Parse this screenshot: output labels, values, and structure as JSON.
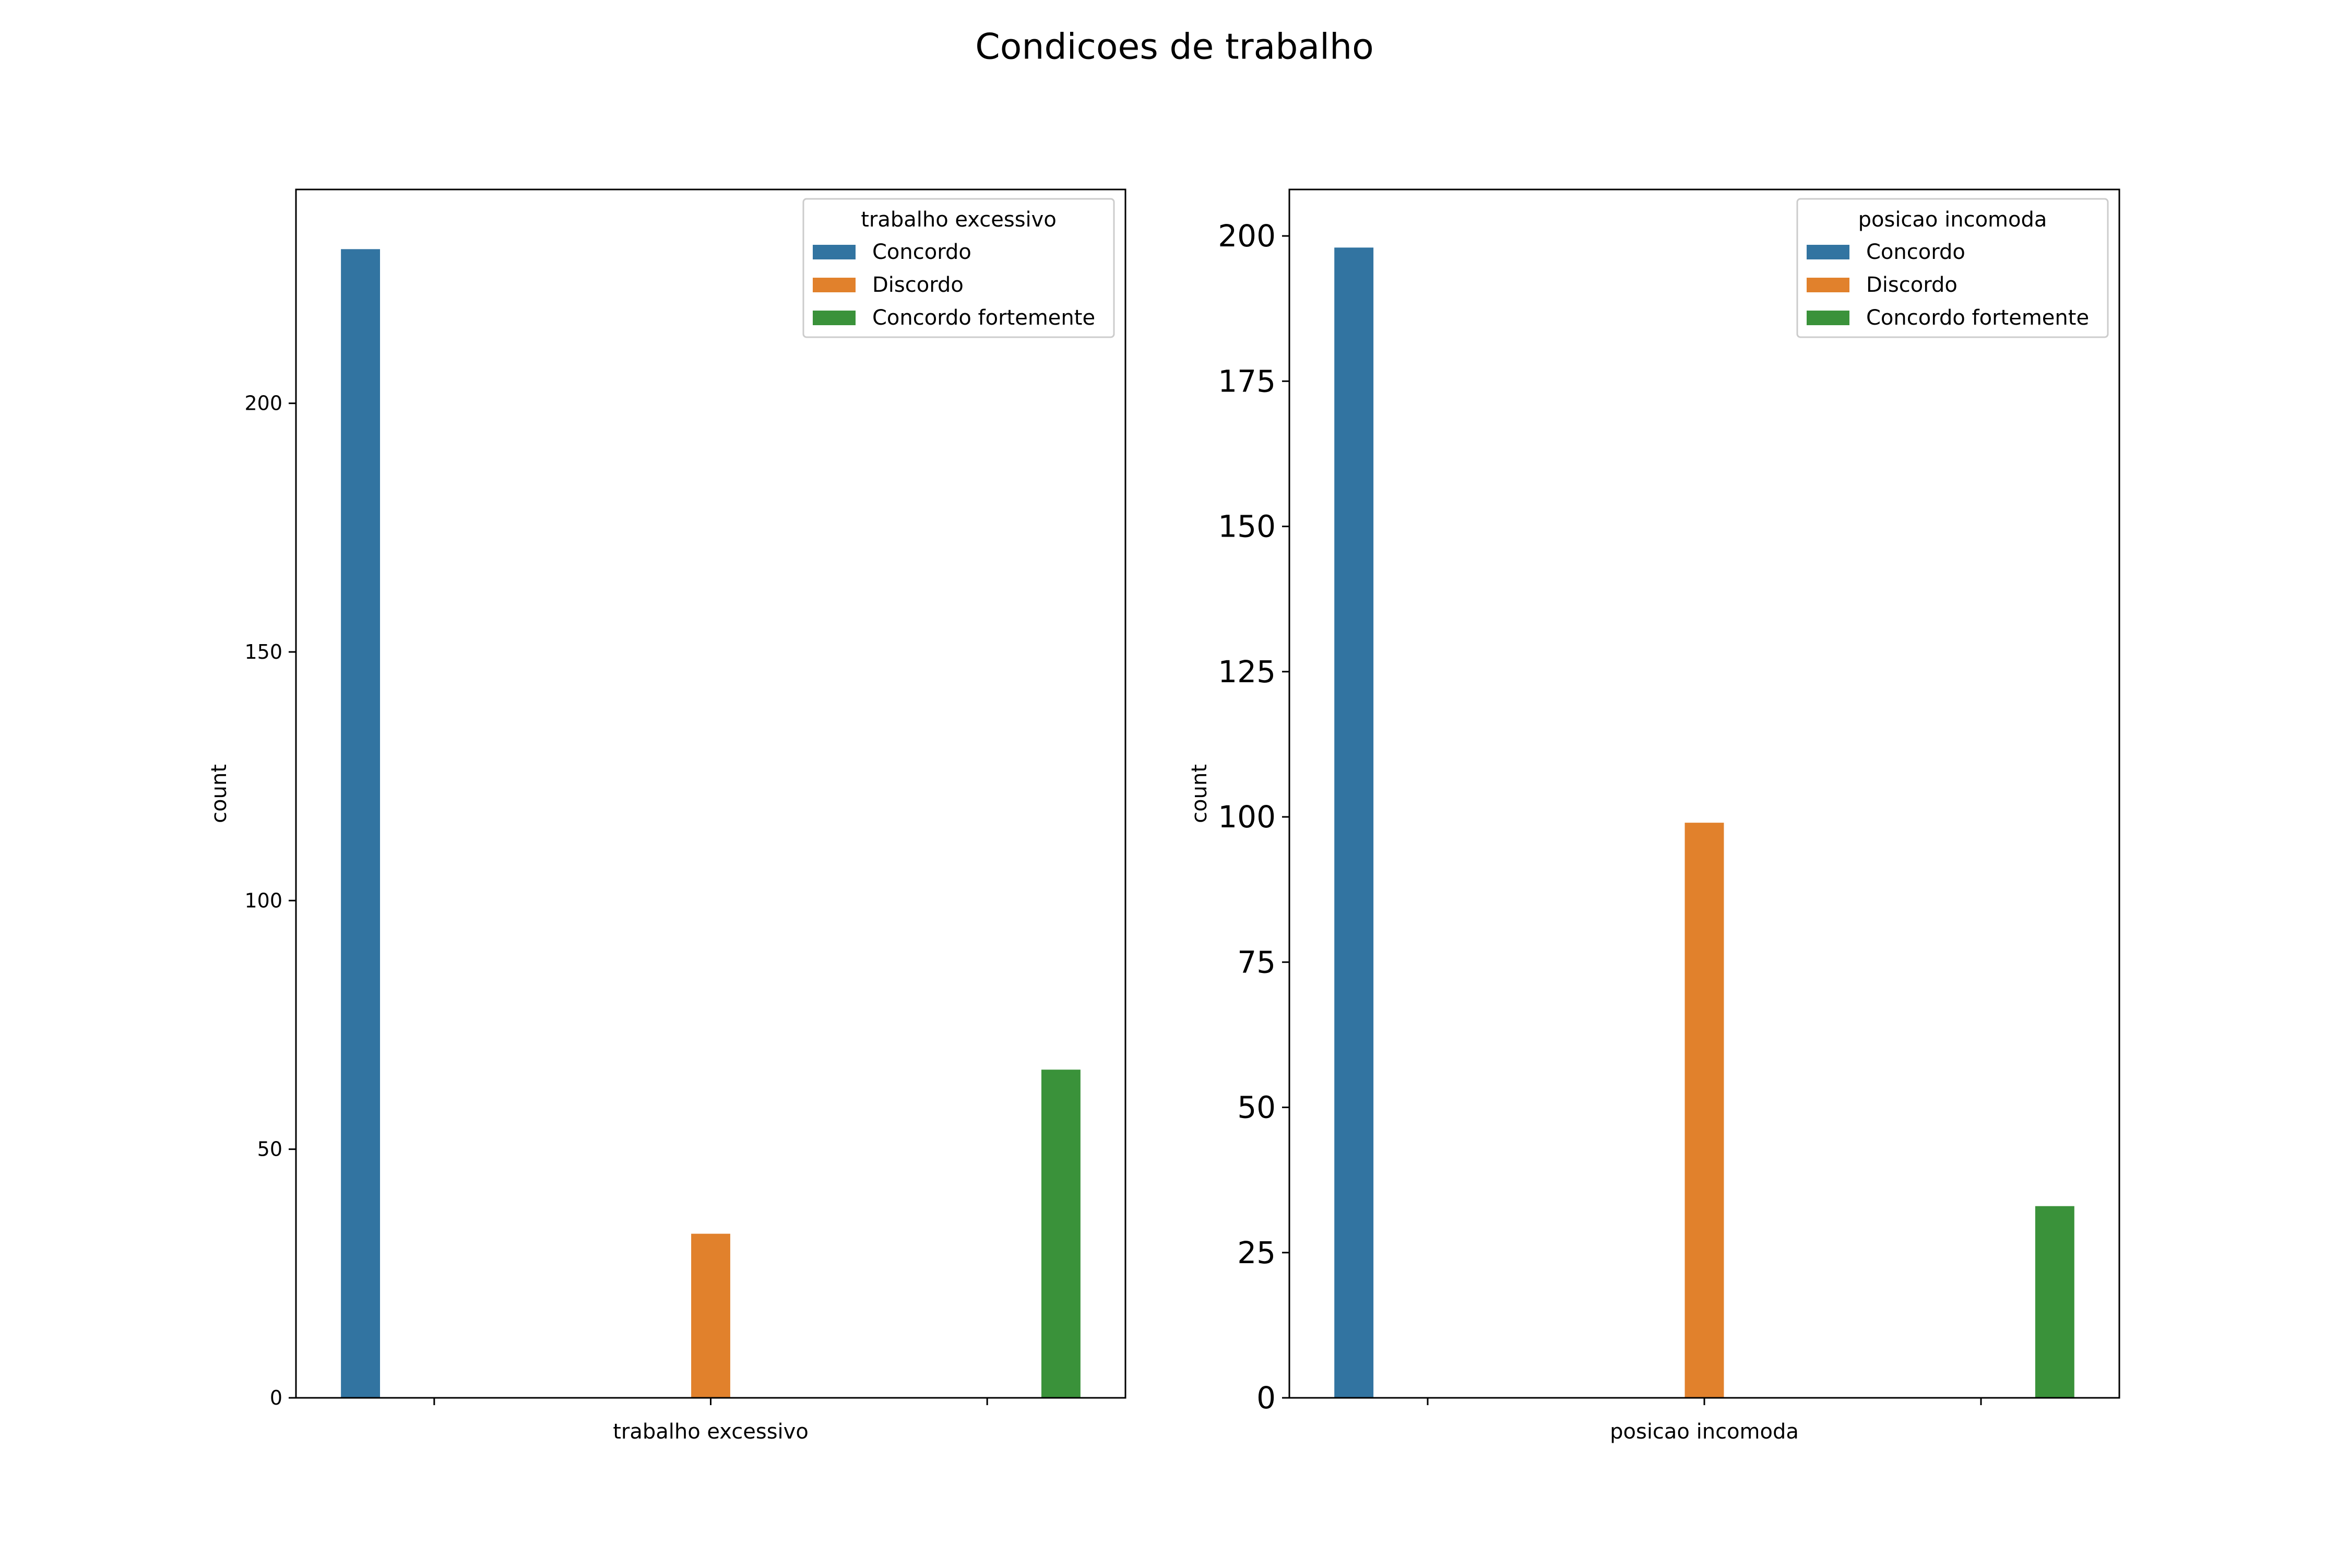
{
  "figure_title": "Condicoes de trabalho",
  "chart_data": [
    {
      "type": "bar",
      "title": "",
      "xlabel": "trabalho excessivo",
      "ylabel": "count",
      "ylim": [
        0,
        243
      ],
      "yticks": [
        0,
        50,
        100,
        150,
        200
      ],
      "legend": {
        "title": "trabalho excessivo",
        "position": "top-right",
        "entries": [
          "Concordo",
          "Discordo",
          "Concordo fortemente"
        ]
      },
      "categories": [
        "Concordo",
        "Discordo",
        "Concordo fortemente"
      ],
      "values": [
        231,
        33,
        66
      ],
      "colors": [
        "#3274a1",
        "#e1812c",
        "#3a923a"
      ],
      "grid": false
    },
    {
      "type": "bar",
      "title": "",
      "xlabel": "posicao incomoda",
      "ylabel": "count",
      "ylim": [
        0,
        208
      ],
      "yticks": [
        0,
        25,
        50,
        75,
        100,
        125,
        150,
        175,
        200
      ],
      "legend": {
        "title": "posicao incomoda",
        "position": "top-right",
        "entries": [
          "Concordo",
          "Discordo",
          "Concordo fortemente"
        ]
      },
      "categories": [
        "Concordo",
        "Discordo",
        "Concordo fortemente"
      ],
      "values": [
        198,
        99,
        33
      ],
      "colors": [
        "#3274a1",
        "#e1812c",
        "#3a923a"
      ],
      "grid": false
    }
  ]
}
